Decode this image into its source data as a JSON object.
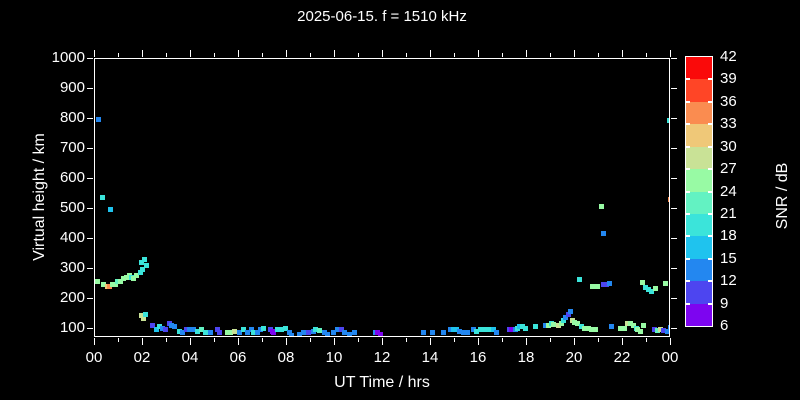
{
  "title": "2025-06-15. f = 1510 kHz",
  "colors": {
    "background": "#000000",
    "text": "#ffffff",
    "axis": "#ffffff"
  },
  "chart_data": {
    "type": "scatter",
    "title": "2025-06-15. f = 1510 kHz",
    "xlabel": "UT Time / hrs",
    "ylabel": "Virtual height / km",
    "colorbar_label": "SNR / dB",
    "x_range_hours": [
      0,
      24
    ],
    "x_major_tick_hours": [
      0,
      2,
      4,
      6,
      8,
      10,
      12,
      14,
      16,
      18,
      20,
      22,
      24
    ],
    "x_major_tick_labels": [
      "00",
      "02",
      "04",
      "06",
      "08",
      "10",
      "12",
      "14",
      "16",
      "18",
      "20",
      "22",
      "00"
    ],
    "x_minor_step_hours": 1,
    "y_ticks_km": [
      100,
      200,
      300,
      400,
      500,
      600,
      700,
      800,
      900,
      1000
    ],
    "ylim_km": [
      70,
      1000
    ],
    "grid": false,
    "colorbar": {
      "min_db": 6,
      "max_db": 42,
      "step_db": 3,
      "tick_labels": [
        "42",
        "39",
        "36",
        "33",
        "30",
        "27",
        "24",
        "21",
        "18",
        "15",
        "12",
        "9",
        "6"
      ],
      "colors_low_to_high": [
        "#7d05f0",
        "#4d45f0",
        "#2387f0",
        "#1fc3ee",
        "#3be4da",
        "#63f2c2",
        "#98faa4",
        "#c9e296",
        "#efc878",
        "#fa8c50",
        "#ff4526",
        "#fa0a0a"
      ]
    },
    "points_hour_km_db": [
      [
        0.15,
        800,
        13.5
      ],
      [
        0.3,
        540,
        19.5
      ],
      [
        0.65,
        500,
        16.5
      ],
      [
        0.02,
        260,
        22.5
      ],
      [
        0.12,
        257,
        25.5
      ],
      [
        0.35,
        250,
        25.5
      ],
      [
        0.5,
        243,
        31.5
      ],
      [
        0.6,
        243,
        34.5
      ],
      [
        0.72,
        247,
        25.5
      ],
      [
        0.85,
        250,
        25.5
      ],
      [
        0.95,
        257,
        22.5
      ],
      [
        1.05,
        260,
        25.5
      ],
      [
        1.18,
        267,
        25.5
      ],
      [
        1.3,
        273,
        25.5
      ],
      [
        1.42,
        280,
        25.5
      ],
      [
        1.5,
        273,
        19.5
      ],
      [
        1.6,
        270,
        25.5
      ],
      [
        1.72,
        277,
        25.5
      ],
      [
        1.88,
        290,
        19.5
      ],
      [
        1.98,
        297,
        19.5
      ],
      [
        2.15,
        313,
        19.5
      ],
      [
        1.95,
        322,
        19.5
      ],
      [
        2.05,
        332,
        19.5
      ],
      [
        1.93,
        145,
        28.5
      ],
      [
        2.0,
        135,
        28.5
      ],
      [
        2.1,
        150,
        19.5
      ],
      [
        2.4,
        113,
        10.5
      ],
      [
        2.55,
        100,
        16.5
      ],
      [
        2.7,
        107,
        19.5
      ],
      [
        2.8,
        103,
        13.5
      ],
      [
        2.95,
        97,
        10.5
      ],
      [
        3.1,
        117,
        10.5
      ],
      [
        3.2,
        113,
        13.5
      ],
      [
        3.3,
        110,
        13.5
      ],
      [
        3.5,
        93,
        19.5
      ],
      [
        3.65,
        90,
        13.5
      ],
      [
        3.8,
        97,
        10.5
      ],
      [
        3.95,
        100,
        13.5
      ],
      [
        4.1,
        97,
        13.5
      ],
      [
        4.25,
        93,
        19.5
      ],
      [
        4.45,
        97,
        22.5
      ],
      [
        4.6,
        87,
        19.5
      ],
      [
        4.8,
        90,
        13.5
      ],
      [
        5.1,
        97,
        10.5
      ],
      [
        5.2,
        90,
        10.5
      ],
      [
        5.5,
        90,
        25.5
      ],
      [
        5.65,
        90,
        25.5
      ],
      [
        5.82,
        93,
        28.5
      ],
      [
        6.0,
        87,
        13.5
      ],
      [
        6.2,
        97,
        19.5
      ],
      [
        6.35,
        90,
        13.5
      ],
      [
        6.5,
        97,
        13.5
      ],
      [
        6.62,
        90,
        19.5
      ],
      [
        6.78,
        87,
        13.5
      ],
      [
        6.9,
        100,
        13.5
      ],
      [
        7.0,
        103,
        19.5
      ],
      [
        7.3,
        100,
        10.5
      ],
      [
        7.38,
        93,
        7.5
      ],
      [
        7.45,
        90,
        7.5
      ],
      [
        7.6,
        100,
        19.5
      ],
      [
        7.75,
        97,
        19.5
      ],
      [
        7.95,
        103,
        19.5
      ],
      [
        8.1,
        87,
        13.5
      ],
      [
        8.2,
        80,
        13.5
      ],
      [
        8.5,
        83,
        13.5
      ],
      [
        8.7,
        87,
        13.5
      ],
      [
        8.9,
        90,
        10.5
      ],
      [
        9.1,
        93,
        13.5
      ],
      [
        9.2,
        100,
        19.5
      ],
      [
        9.35,
        95,
        22.5
      ],
      [
        9.55,
        87,
        13.5
      ],
      [
        9.7,
        83,
        13.5
      ],
      [
        9.95,
        90,
        13.5
      ],
      [
        10.1,
        97,
        13.5
      ],
      [
        10.25,
        100,
        10.5
      ],
      [
        10.4,
        87,
        13.5
      ],
      [
        10.6,
        83,
        13.5
      ],
      [
        10.8,
        87,
        13.5
      ],
      [
        11.7,
        90,
        13.5
      ],
      [
        11.78,
        87,
        7.5
      ],
      [
        11.88,
        83,
        7.5
      ],
      [
        13.7,
        87,
        13.5
      ],
      [
        14.05,
        87,
        13.5
      ],
      [
        14.5,
        90,
        13.5
      ],
      [
        14.8,
        97,
        13.5
      ],
      [
        14.95,
        100,
        16.5
      ],
      [
        15.05,
        97,
        16.5
      ],
      [
        15.2,
        93,
        13.5
      ],
      [
        15.35,
        90,
        13.5
      ],
      [
        15.5,
        87,
        13.5
      ],
      [
        15.75,
        97,
        13.5
      ],
      [
        15.9,
        93,
        19.5
      ],
      [
        16.05,
        97,
        19.5
      ],
      [
        16.2,
        97,
        19.5
      ],
      [
        16.32,
        97,
        19.5
      ],
      [
        16.45,
        97,
        19.5
      ],
      [
        16.6,
        97,
        16.5
      ],
      [
        16.72,
        90,
        13.5
      ],
      [
        17.25,
        100,
        10.5
      ],
      [
        17.35,
        100,
        7.5
      ],
      [
        17.5,
        100,
        13.5
      ],
      [
        17.62,
        103,
        19.5
      ],
      [
        17.7,
        107,
        16.5
      ],
      [
        17.82,
        107,
        19.5
      ],
      [
        17.92,
        103,
        19.5
      ],
      [
        18.35,
        107,
        19.5
      ],
      [
        18.78,
        113,
        13.5
      ],
      [
        18.9,
        112,
        25.5
      ],
      [
        19.0,
        120,
        19.5
      ],
      [
        19.12,
        115,
        25.5
      ],
      [
        19.3,
        112,
        28.5
      ],
      [
        19.42,
        118,
        25.5
      ],
      [
        19.5,
        130,
        19.5
      ],
      [
        19.62,
        137,
        13.5
      ],
      [
        19.72,
        150,
        10.5
      ],
      [
        19.8,
        157,
        13.5
      ],
      [
        19.88,
        127,
        28.5
      ],
      [
        19.98,
        122,
        25.5
      ],
      [
        20.1,
        118,
        25.5
      ],
      [
        20.25,
        108,
        19.5
      ],
      [
        20.4,
        103,
        25.5
      ],
      [
        20.55,
        102,
        25.5
      ],
      [
        20.7,
        100,
        25.5
      ],
      [
        20.85,
        100,
        25.5
      ],
      [
        20.2,
        264,
        19.5
      ],
      [
        20.72,
        243,
        25.5
      ],
      [
        20.92,
        243,
        25.5
      ],
      [
        21.2,
        248,
        10.5
      ],
      [
        21.3,
        250,
        10.5
      ],
      [
        21.42,
        253,
        13.5
      ],
      [
        21.1,
        510,
        25.5
      ],
      [
        21.2,
        420,
        13.5
      ],
      [
        21.5,
        110,
        13.5
      ],
      [
        21.9,
        103,
        25.5
      ],
      [
        22.05,
        103,
        25.5
      ],
      [
        22.2,
        117,
        28.5
      ],
      [
        22.32,
        120,
        25.5
      ],
      [
        22.42,
        112,
        25.5
      ],
      [
        22.55,
        103,
        19.5
      ],
      [
        22.62,
        97,
        25.5
      ],
      [
        22.72,
        93,
        25.5
      ],
      [
        22.85,
        113,
        25.5
      ],
      [
        22.8,
        254,
        25.5
      ],
      [
        22.95,
        240,
        19.5
      ],
      [
        23.05,
        231,
        19.5
      ],
      [
        23.2,
        224,
        19.5
      ],
      [
        23.35,
        234,
        25.5
      ],
      [
        23.78,
        251,
        25.5
      ],
      [
        23.3,
        97,
        10.5
      ],
      [
        23.45,
        95,
        22.5
      ],
      [
        23.55,
        97,
        28.5
      ],
      [
        23.7,
        95,
        10.5
      ],
      [
        23.85,
        93,
        13.5
      ],
      [
        23.97,
        105,
        13.5
      ],
      [
        23.92,
        796,
        19.5
      ],
      [
        23.99,
        532,
        34.5
      ]
    ]
  }
}
